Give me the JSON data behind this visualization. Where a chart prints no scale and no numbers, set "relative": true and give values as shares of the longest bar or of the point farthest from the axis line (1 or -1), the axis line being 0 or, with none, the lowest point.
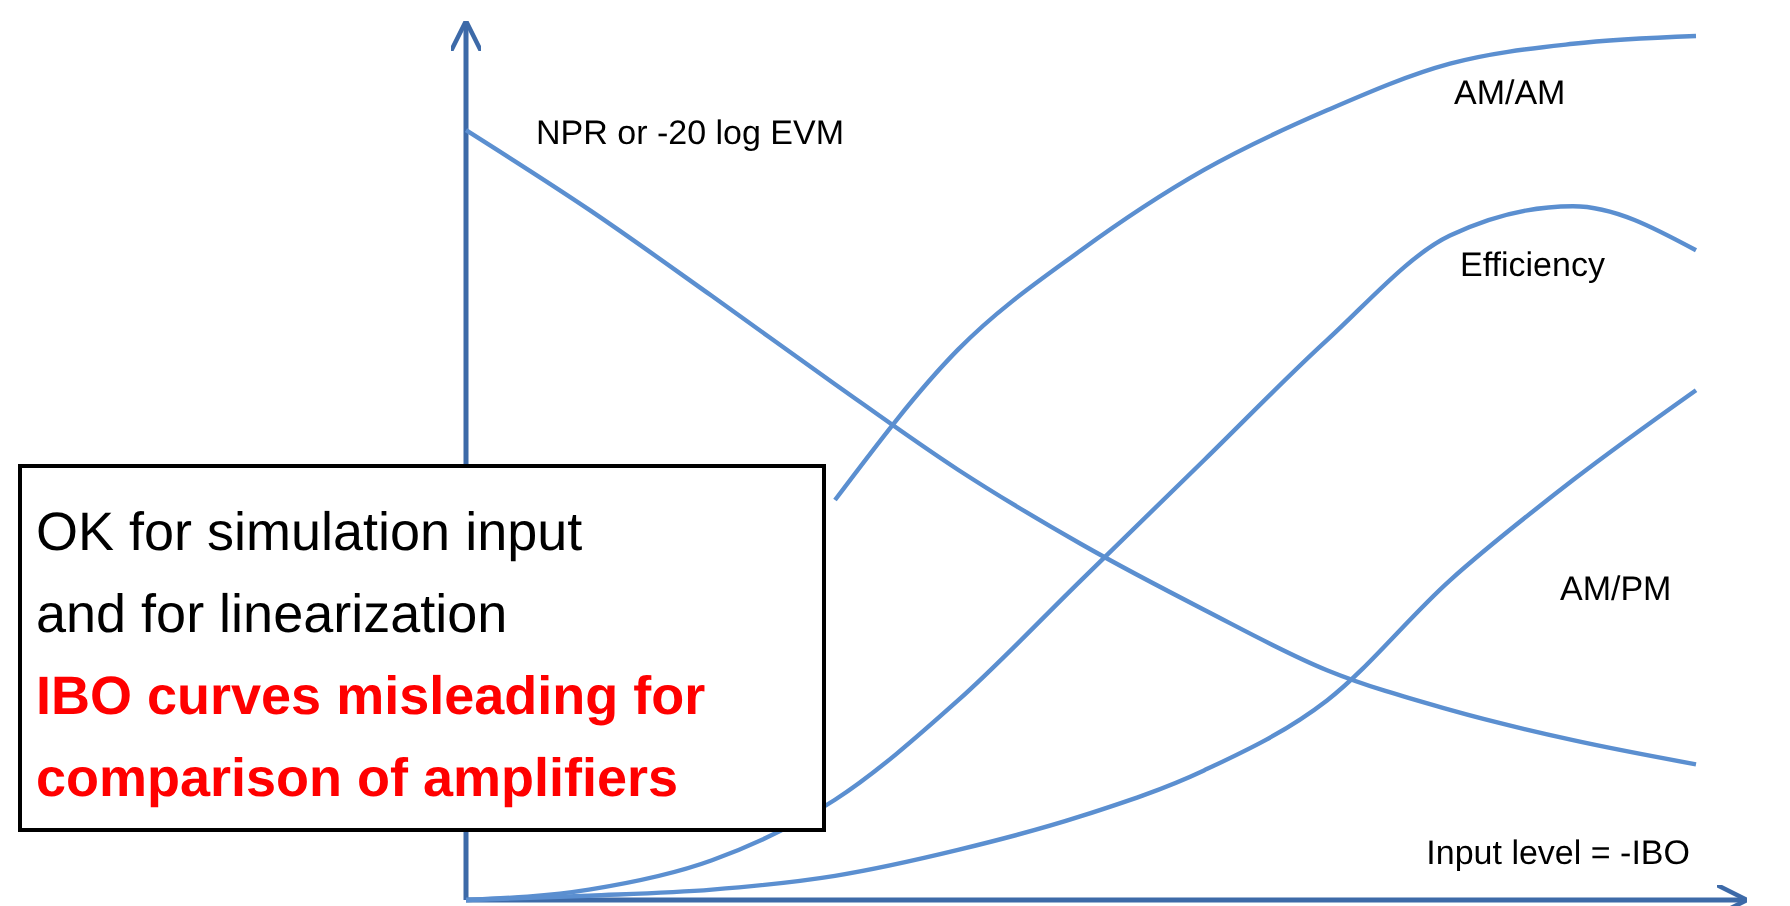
{
  "chart_data": {
    "type": "line",
    "relative": true,
    "xlabel": "Input level = -IBO",
    "categories": [
      null,
      null,
      null,
      null,
      null,
      null,
      null,
      null,
      null,
      null,
      null
    ],
    "series": [
      {
        "name": "NPR or -20 log EVM",
        "color": "#5b8fd0",
        "values": [
          0.891,
          0.799,
          0.699,
          0.597,
          0.498,
          0.412,
          0.336,
          0.266,
          0.22,
          0.185,
          0.157
        ]
      },
      {
        "name": "AM/AM",
        "color": "#5b8fd0",
        "values": [
          null,
          null,
          null,
          0.463,
          0.637,
          0.752,
          0.845,
          0.914,
          0.968,
          0.991,
          1.0
        ]
      },
      {
        "name": "Efficiency",
        "color": "#5b8fd0",
        "values": [
          0,
          0.012,
          0.046,
          0.116,
          0.231,
          0.37,
          0.509,
          0.648,
          0.769,
          0.803,
          0.752
        ]
      },
      {
        "name": "AM/PM",
        "color": "#5b8fd0",
        "values": [
          0,
          0.005,
          0.012,
          0.028,
          0.058,
          0.097,
          0.15,
          0.231,
          0.37,
          0.486,
          0.59
        ]
      }
    ],
    "annotations": [
      "OK for simulation input",
      "and for linearization",
      "IBO curves misleading for",
      "comparison of amplifiers"
    ],
    "marker": "none",
    "line_style": "solid"
  }
}
